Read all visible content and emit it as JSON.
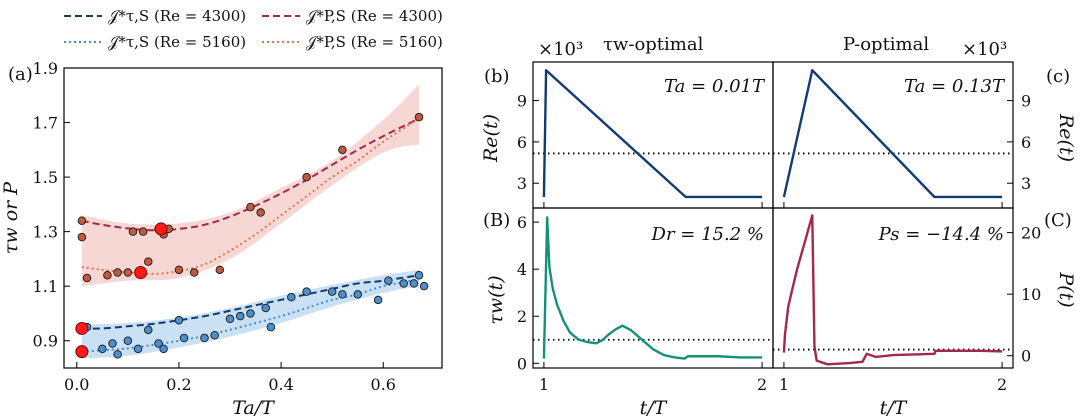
{
  "colors": {
    "tauS4300": "#123b73",
    "tauS5160": "#3f8fd6",
    "pS4300": "#a3284d",
    "pS5160": "#e0764a",
    "tauBand": "#9ec6ea",
    "pBand": "#efb6ae",
    "tauPoints": "#4c8fcf",
    "pPoints": "#c0593f",
    "optimal": "#ff1a1a",
    "reLine": "#123b73",
    "tauwLine": "#149178",
    "pLine": "#a3284d"
  },
  "legend": [
    {
      "id": "tauS4300",
      "label": "𝒥*τ,S (Re = 4300)",
      "style": "dashed"
    },
    {
      "id": "pS4300",
      "label": "𝒥*P,S (Re = 4300)",
      "style": "dashed"
    },
    {
      "id": "tauS5160",
      "label": "𝒥*τ,S (Re = 5160)",
      "style": "dotted"
    },
    {
      "id": "pS5160",
      "label": "𝒥*P,S (Re = 5160)",
      "style": "dotted"
    }
  ],
  "chart_data": [
    {
      "id": "a",
      "type": "scatter",
      "panel_label": "(a)",
      "xlabel": "Ta/T",
      "ylabel": "τw or P",
      "xlim": [
        -0.025,
        0.715
      ],
      "ylim": [
        0.8,
        1.9
      ],
      "xticks": [
        0.0,
        0.2,
        0.4,
        0.6
      ],
      "xtick_labels": [
        "0.0",
        "0.2",
        "0.4",
        "0.6"
      ],
      "yticks": [
        0.9,
        1.1,
        1.3,
        1.5,
        1.7,
        1.9
      ],
      "ytick_labels": [
        "0.9",
        "1.1",
        "1.3",
        "1.5",
        "1.7",
        "1.9"
      ],
      "series": [
        {
          "name": "tauS4300",
          "style": "dashed",
          "x": [
            0.01,
            0.05,
            0.1,
            0.15,
            0.2,
            0.25,
            0.3,
            0.35,
            0.4,
            0.45,
            0.5,
            0.55,
            0.6,
            0.67
          ],
          "y": [
            0.945,
            0.945,
            0.953,
            0.962,
            0.975,
            0.99,
            1.01,
            1.03,
            1.05,
            1.07,
            1.09,
            1.11,
            1.12,
            1.14
          ]
        },
        {
          "name": "tauS5160",
          "style": "dotted",
          "x": [
            0.01,
            0.05,
            0.1,
            0.15,
            0.2,
            0.25,
            0.3,
            0.35,
            0.4,
            0.45,
            0.5,
            0.55,
            0.6,
            0.67
          ],
          "y": [
            0.86,
            0.865,
            0.872,
            0.885,
            0.9,
            0.918,
            0.94,
            0.965,
            0.99,
            1.02,
            1.05,
            1.07,
            1.1,
            1.125
          ]
        },
        {
          "name": "pS4300",
          "style": "dashed",
          "x": [
            0.01,
            0.05,
            0.1,
            0.15,
            0.2,
            0.25,
            0.3,
            0.35,
            0.4,
            0.45,
            0.5,
            0.55,
            0.6,
            0.67
          ],
          "y": [
            1.34,
            1.325,
            1.312,
            1.305,
            1.31,
            1.325,
            1.355,
            1.395,
            1.44,
            1.49,
            1.545,
            1.6,
            1.65,
            1.715
          ]
        },
        {
          "name": "pS5160",
          "style": "dotted",
          "x": [
            0.01,
            0.05,
            0.1,
            0.15,
            0.2,
            0.25,
            0.3,
            0.35,
            0.4,
            0.45,
            0.5,
            0.55,
            0.6,
            0.67
          ],
          "y": [
            1.17,
            1.16,
            1.15,
            1.145,
            1.155,
            1.18,
            1.23,
            1.29,
            1.36,
            1.43,
            1.5,
            1.56,
            1.63,
            1.715
          ]
        }
      ],
      "bands": [
        {
          "name": "tauBand",
          "x": [
            0.01,
            0.1,
            0.2,
            0.3,
            0.4,
            0.5,
            0.6,
            0.67
          ],
          "lower": [
            0.835,
            0.845,
            0.875,
            0.915,
            0.965,
            1.025,
            1.075,
            1.1
          ],
          "upper": [
            0.96,
            0.965,
            0.985,
            1.02,
            1.065,
            1.105,
            1.14,
            1.16
          ]
        },
        {
          "name": "pBand",
          "x": [
            0.01,
            0.1,
            0.2,
            0.3,
            0.4,
            0.5,
            0.6,
            0.67
          ],
          "lower": [
            1.1,
            1.12,
            1.13,
            1.2,
            1.33,
            1.47,
            1.59,
            1.62
          ],
          "upper": [
            1.36,
            1.33,
            1.33,
            1.37,
            1.46,
            1.56,
            1.71,
            1.84
          ]
        }
      ],
      "points": [
        {
          "group": "tauPoints",
          "x": [
            0.01,
            0.02,
            0.05,
            0.07,
            0.08,
            0.1,
            0.12,
            0.14,
            0.16,
            0.17,
            0.2,
            0.21,
            0.25,
            0.27,
            0.3,
            0.32,
            0.34,
            0.37,
            0.38,
            0.42,
            0.45,
            0.5,
            0.52,
            0.55,
            0.59,
            0.61,
            0.64,
            0.66,
            0.67,
            0.68
          ],
          "y": [
            0.86,
            0.95,
            0.87,
            0.89,
            0.85,
            0.9,
            0.87,
            0.94,
            0.89,
            0.87,
            0.975,
            0.91,
            0.91,
            0.92,
            0.98,
            0.99,
            1.0,
            1.02,
            0.95,
            1.06,
            1.08,
            1.08,
            1.07,
            1.07,
            1.05,
            1.12,
            1.11,
            1.11,
            1.14,
            1.1
          ]
        },
        {
          "group": "pPoints",
          "x": [
            0.01,
            0.01,
            0.02,
            0.06,
            0.08,
            0.1,
            0.11,
            0.13,
            0.14,
            0.16,
            0.17,
            0.18,
            0.2,
            0.23,
            0.28,
            0.34,
            0.36,
            0.45,
            0.52,
            0.67
          ],
          "y": [
            1.34,
            1.28,
            1.13,
            1.14,
            1.15,
            1.15,
            1.3,
            1.3,
            1.19,
            1.31,
            1.29,
            1.31,
            1.16,
            1.15,
            1.16,
            1.39,
            1.37,
            1.5,
            1.6,
            1.72
          ]
        },
        {
          "group": "optimal",
          "x": [
            0.01,
            0.01,
            0.125,
            0.165
          ],
          "y": [
            0.945,
            0.86,
            1.15,
            1.31
          ]
        }
      ]
    },
    {
      "id": "b",
      "type": "line",
      "panel_label": "(b)",
      "top_title": "τw-optimal",
      "multiplier": "×10³",
      "ylabel": "Re(t)",
      "annotation": "Ta = 0.01T",
      "xlim": [
        0.95,
        2.05
      ],
      "ylim": [
        1.2,
        11.8
      ],
      "yticks": [
        3,
        6,
        9
      ],
      "ytick_labels": [
        "3",
        "6",
        "9"
      ],
      "x": [
        1.0,
        1.01,
        1.65,
        2.0
      ],
      "y": [
        2.0,
        11.2,
        2.0,
        2.0
      ],
      "reference": 5.16
    },
    {
      "id": "c",
      "type": "line",
      "panel_label": "(c)",
      "top_title": "P-optimal",
      "multiplier": "×10³",
      "ylabel": "Re(t)",
      "annotation": "Ta = 0.13T",
      "xlim": [
        0.95,
        2.05
      ],
      "ylim": [
        1.2,
        11.8
      ],
      "yticks": [
        3,
        6,
        9
      ],
      "ytick_labels": [
        "3",
        "6",
        "9"
      ],
      "x": [
        1.0,
        1.13,
        1.69,
        2.0
      ],
      "y": [
        2.0,
        11.2,
        2.0,
        2.0
      ],
      "reference": 5.16
    },
    {
      "id": "B",
      "type": "line",
      "panel_label": "(B)",
      "ylabel": "τw(t)",
      "xlabel": "t/T",
      "annotation": "Dr = 15.2 %",
      "xlim": [
        0.95,
        2.05
      ],
      "ylim": [
        -0.2,
        6.6
      ],
      "xticks": [
        1,
        2
      ],
      "xtick_labels": [
        "1",
        "2"
      ],
      "yticks": [
        0,
        2,
        4,
        6
      ],
      "ytick_labels": [
        "0",
        "2",
        "4",
        "6"
      ],
      "x": [
        1.0,
        1.015,
        1.025,
        1.04,
        1.06,
        1.09,
        1.12,
        1.16,
        1.2,
        1.24,
        1.27,
        1.3,
        1.33,
        1.36,
        1.4,
        1.45,
        1.5,
        1.55,
        1.6,
        1.645,
        1.66,
        1.7,
        1.8,
        1.9,
        2.0
      ],
      "y": [
        0.2,
        6.2,
        4.1,
        3.2,
        2.5,
        1.8,
        1.3,
        1.0,
        0.9,
        0.85,
        1.0,
        1.25,
        1.45,
        1.6,
        1.4,
        1.0,
        0.6,
        0.35,
        0.25,
        0.2,
        0.3,
        0.3,
        0.3,
        0.25,
        0.25
      ],
      "reference": 1.0
    },
    {
      "id": "C",
      "type": "line",
      "panel_label": "(C)",
      "ylabel": "P(t)",
      "xlabel": "t/T",
      "annotation": "Ps = −14.4 %",
      "xlim": [
        0.95,
        2.05
      ],
      "ylim": [
        -2.0,
        24.0
      ],
      "xticks": [
        1,
        2
      ],
      "xtick_labels": [
        "1",
        "2"
      ],
      "yticks": [
        0,
        10,
        20
      ],
      "ytick_labels": [
        "0",
        "10",
        "20"
      ],
      "x": [
        1.0,
        1.005,
        1.02,
        1.06,
        1.1,
        1.13,
        1.14,
        1.15,
        1.2,
        1.3,
        1.36,
        1.38,
        1.42,
        1.5,
        1.6,
        1.69,
        1.695,
        1.8,
        1.9,
        2.0
      ],
      "y": [
        0.5,
        3.5,
        8,
        14,
        19,
        22.8,
        1.5,
        -0.8,
        -1.4,
        -1.2,
        -1.0,
        0.3,
        -0.2,
        0.1,
        0.2,
        0.3,
        0.8,
        0.8,
        0.8,
        0.7
      ],
      "reference": 1.0
    }
  ]
}
